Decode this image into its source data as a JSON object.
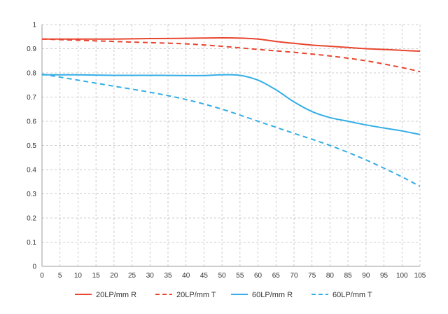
{
  "chart_data": {
    "type": "line",
    "title": "",
    "xlabel": "",
    "ylabel": "",
    "xlim": [
      0,
      105
    ],
    "ylim": [
      0,
      1
    ],
    "x_ticks": [
      0,
      5,
      10,
      15,
      20,
      25,
      30,
      35,
      40,
      45,
      50,
      55,
      60,
      65,
      70,
      75,
      80,
      85,
      90,
      95,
      100,
      105
    ],
    "y_ticks": [
      0,
      0.1,
      0.2,
      0.3,
      0.4,
      0.5,
      0.6,
      0.7,
      0.8,
      0.9,
      1
    ],
    "y_tick_labels": [
      "0",
      "0.1",
      "0.2",
      "0.3",
      "0.4",
      "0.5",
      "0.6",
      "0.7",
      "0.8",
      "0.9",
      "1"
    ],
    "grid": true,
    "legend_position": "bottom",
    "series": [
      {
        "name": "20LP/mm R",
        "color": "#e8452e",
        "dash": "solid",
        "x": [
          0,
          10,
          20,
          30,
          40,
          50,
          55,
          60,
          65,
          70,
          75,
          80,
          85,
          90,
          95,
          100,
          105
        ],
        "y": [
          0.94,
          0.94,
          0.94,
          0.942,
          0.943,
          0.945,
          0.944,
          0.94,
          0.93,
          0.922,
          0.915,
          0.91,
          0.905,
          0.9,
          0.897,
          0.893,
          0.89
        ]
      },
      {
        "name": "20LP/mm T",
        "color": "#e8452e",
        "dash": "dashed",
        "x": [
          0,
          10,
          20,
          30,
          40,
          50,
          60,
          70,
          80,
          90,
          100,
          105
        ],
        "y": [
          0.94,
          0.935,
          0.93,
          0.925,
          0.92,
          0.91,
          0.897,
          0.885,
          0.87,
          0.85,
          0.822,
          0.805
        ]
      },
      {
        "name": "60LP/mm R",
        "color": "#33aee6",
        "dash": "solid",
        "x": [
          0,
          10,
          20,
          30,
          40,
          45,
          50,
          55,
          60,
          65,
          70,
          75,
          80,
          85,
          90,
          95,
          100,
          105
        ],
        "y": [
          0.792,
          0.792,
          0.79,
          0.79,
          0.789,
          0.789,
          0.792,
          0.79,
          0.77,
          0.73,
          0.68,
          0.64,
          0.615,
          0.6,
          0.585,
          0.572,
          0.56,
          0.545
        ]
      },
      {
        "name": "60LP/mm T",
        "color": "#33aee6",
        "dash": "dashed",
        "x": [
          0,
          10,
          20,
          30,
          40,
          50,
          60,
          70,
          80,
          90,
          100,
          105
        ],
        "y": [
          0.795,
          0.77,
          0.745,
          0.72,
          0.69,
          0.65,
          0.6,
          0.55,
          0.5,
          0.44,
          0.37,
          0.33
        ]
      }
    ]
  }
}
